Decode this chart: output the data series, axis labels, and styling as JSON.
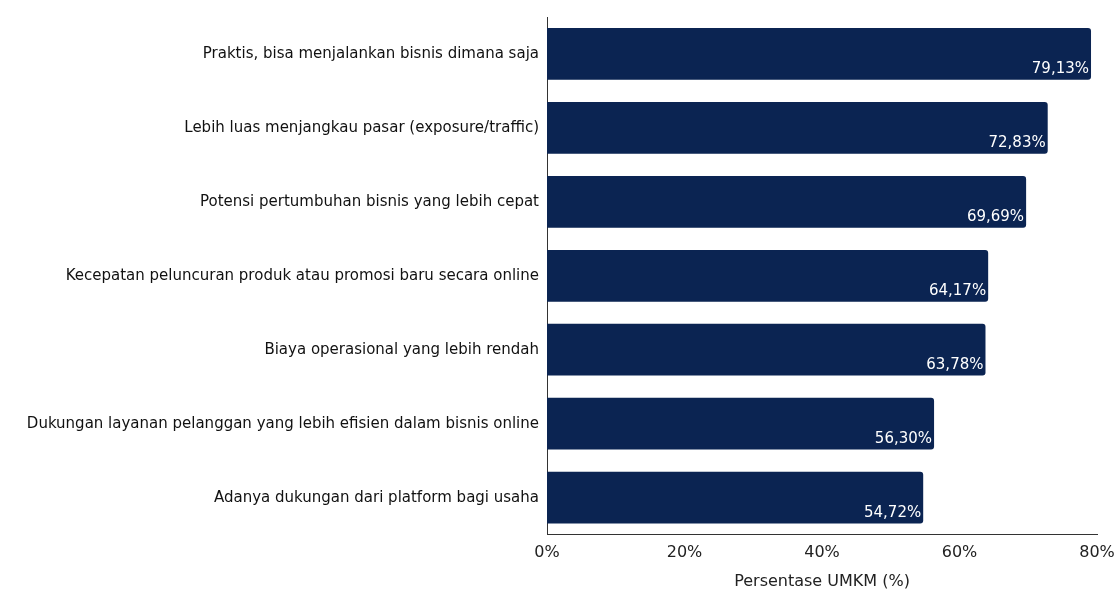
{
  "chart_data": {
    "type": "bar",
    "orientation": "horizontal",
    "categories": [
      "Praktis, bisa menjalankan bisnis dimana saja",
      "Lebih luas menjangkau pasar (exposure/traffic)",
      "Potensi pertumbuhan bisnis yang lebih cepat",
      "Kecepatan peluncuran produk atau promosi baru secara online",
      "Biaya operasional yang lebih rendah",
      "Dukungan layanan pelanggan yang lebih efisien dalam bisnis online",
      "Adanya dukungan dari platform bagi usaha"
    ],
    "values": [
      79.13,
      72.83,
      69.69,
      64.17,
      63.78,
      56.3,
      54.72
    ],
    "value_labels": [
      "79,13%",
      "72,83%",
      "69,69%",
      "64,17%",
      "63,78%",
      "56,30%",
      "54,72%"
    ],
    "color": "#0b2452",
    "xlabel": "Persentase UMKM (%)",
    "xlim": [
      0,
      80
    ],
    "xticks": [
      {
        "value": 0,
        "label": "0%"
      },
      {
        "value": 20,
        "label": "20%"
      },
      {
        "value": 40,
        "label": "40%"
      },
      {
        "value": 60,
        "label": "60%"
      },
      {
        "value": 80,
        "label": "80%"
      }
    ],
    "grid": false,
    "legend": false
  }
}
